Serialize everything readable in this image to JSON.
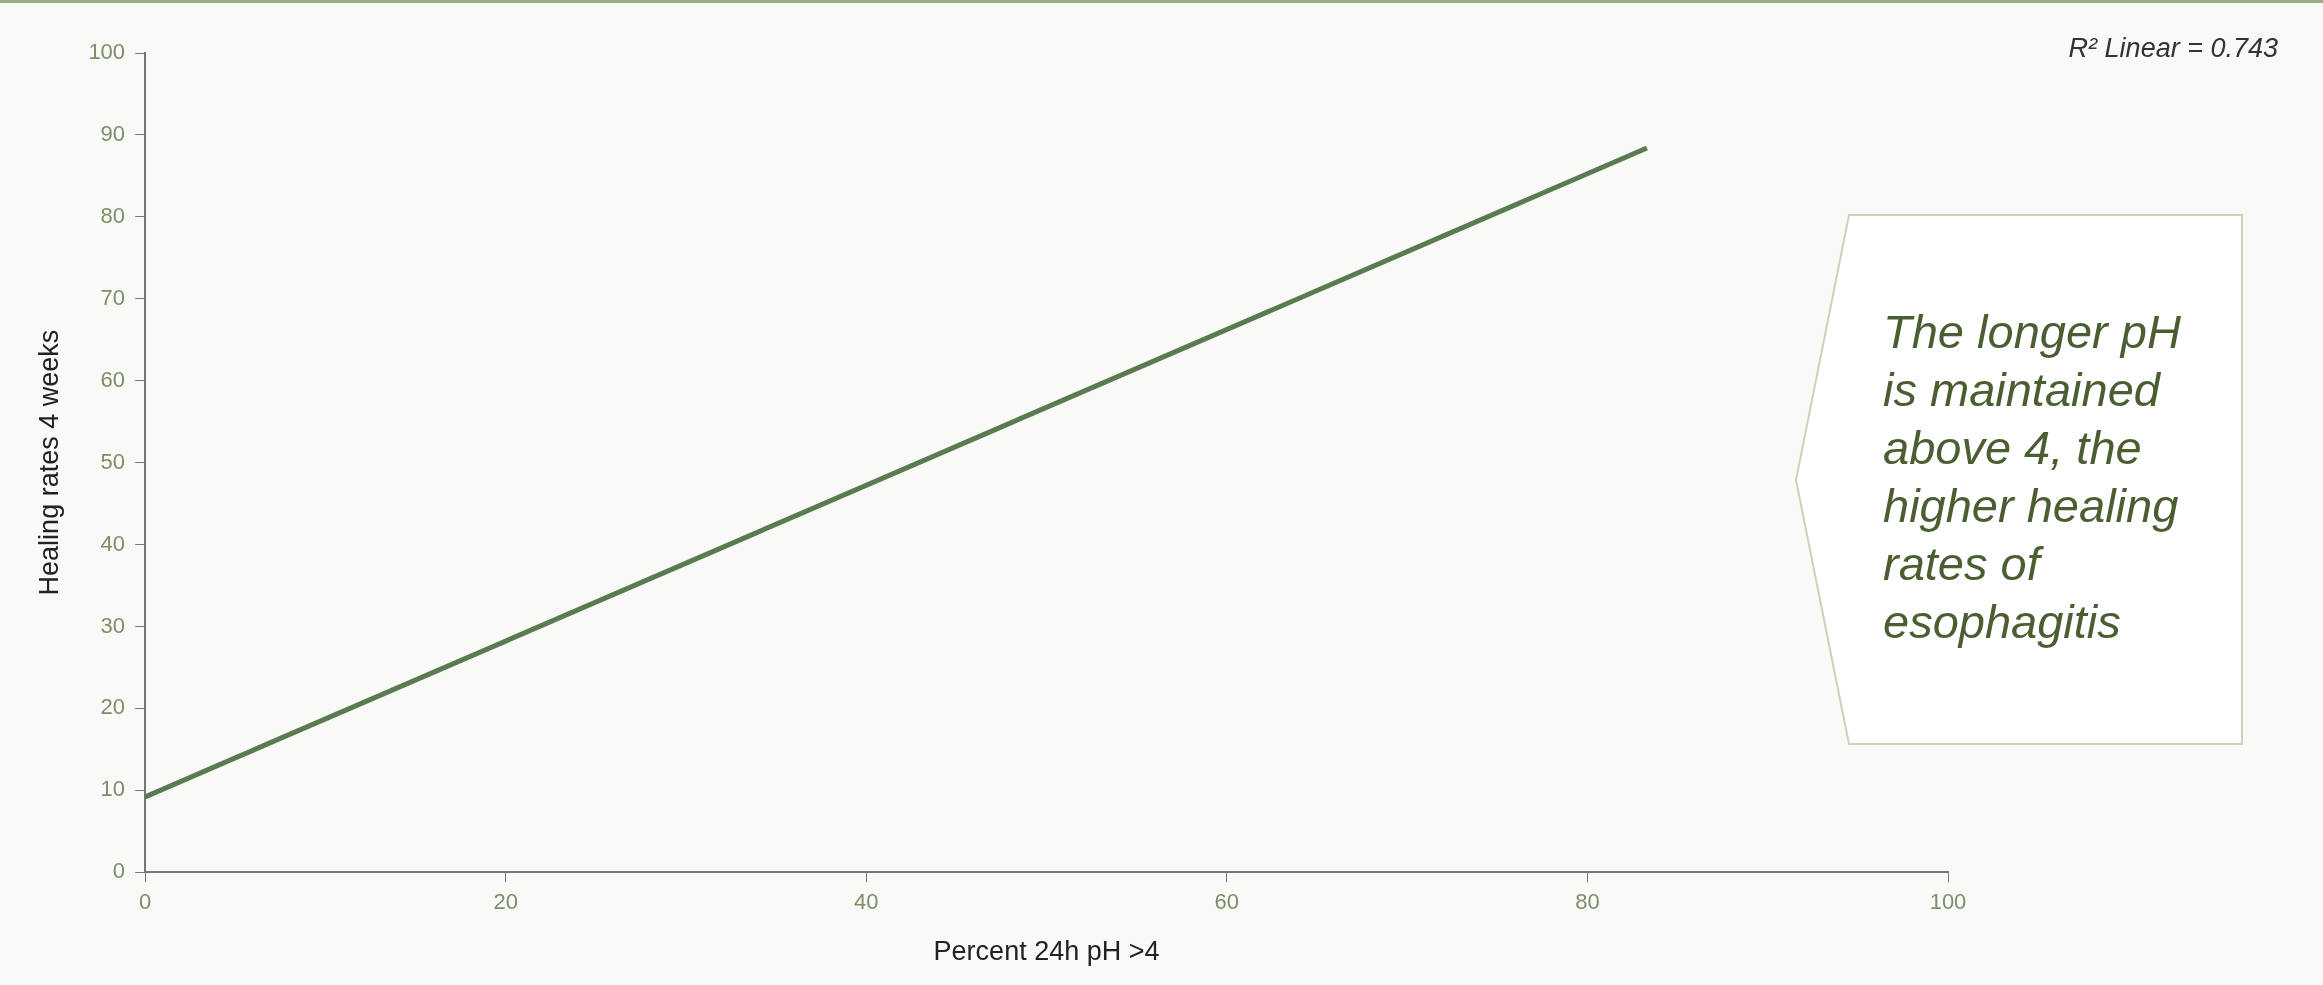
{
  "chart_data": {
    "type": "line",
    "xlabel": "Percent 24h pH >4",
    "ylabel": "Healing rates 4 weeks",
    "annotations": [
      "R² Linear = 0.743",
      "The longer pH is maintained above 4, the higher healing rates of esophagitis"
    ],
    "series": [
      {
        "x": [
          0,
          83.3
        ],
        "values": [
          9.2,
          88.4
        ],
        "color": "#5a7a52"
      }
    ],
    "xlim": [
      0,
      100
    ],
    "ylim": [
      0,
      100
    ],
    "xticks": [
      0,
      20,
      40,
      60,
      80,
      100
    ],
    "yticks": [
      0,
      10,
      20,
      30,
      40,
      50,
      60,
      70,
      80,
      90,
      100
    ],
    "grid": false,
    "legend": false,
    "marker": "none",
    "line_style": "solid"
  }
}
